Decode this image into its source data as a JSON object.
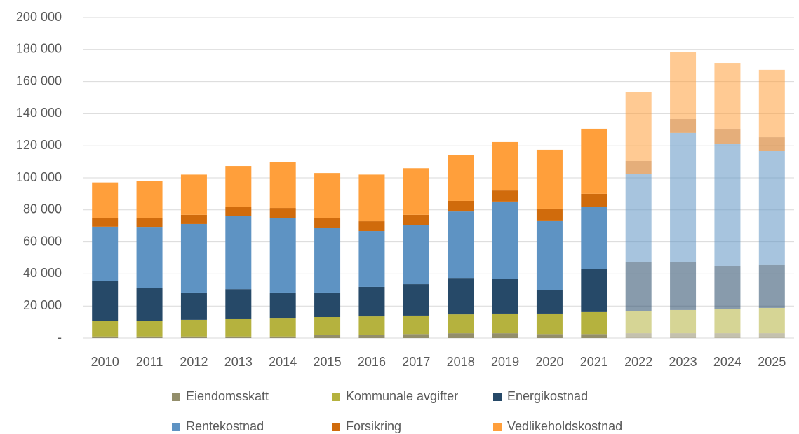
{
  "chart_data": {
    "type": "stacked_bar",
    "categories": [
      "2010",
      "2011",
      "2012",
      "2013",
      "2014",
      "2015",
      "2016",
      "2017",
      "2018",
      "2019",
      "2020",
      "2021",
      "2022",
      "2023",
      "2024",
      "2025"
    ],
    "alpha": [
      1,
      1,
      1,
      1,
      1,
      1,
      1,
      1,
      1,
      1,
      1,
      1,
      0.55,
      0.55,
      0.55,
      0.55
    ],
    "series": [
      {
        "name": "Eiendomsskatt",
        "color": "#938e6b",
        "values": [
          1000,
          1000,
          1000,
          1000,
          1000,
          2000,
          2000,
          2500,
          3000,
          3000,
          2500,
          2500,
          3000,
          3000,
          3000,
          3000
        ]
      },
      {
        "name": "Kommunale avgifter",
        "color": "#b5b23e",
        "values": [
          9500,
          9900,
          10400,
          10800,
          11200,
          11100,
          11500,
          11500,
          11800,
          12300,
          12800,
          13700,
          14000,
          14500,
          14900,
          15800
        ]
      },
      {
        "name": "Energikostnad",
        "color": "#264968",
        "values": [
          25000,
          20500,
          17000,
          18700,
          16200,
          15300,
          18400,
          19600,
          22700,
          21400,
          14400,
          26600,
          30200,
          29700,
          27100,
          27100
        ]
      },
      {
        "name": "Rentekostnad",
        "color": "#5e93c3",
        "values": [
          34000,
          38000,
          42800,
          45500,
          46700,
          40600,
          34900,
          37100,
          41500,
          48500,
          43700,
          39300,
          55400,
          80800,
          76400,
          70700
        ]
      },
      {
        "name": "Forsikring",
        "color": "#d06b0c",
        "values": [
          5300,
          5300,
          5700,
          5700,
          6100,
          5700,
          6100,
          6200,
          6600,
          6900,
          7400,
          7900,
          7900,
          8700,
          9200,
          8700
        ]
      },
      {
        "name": "Vedlikeholdskostnad",
        "color": "#ff9f3b",
        "values": [
          22300,
          23300,
          25100,
          25700,
          28800,
          28300,
          29100,
          29100,
          28800,
          30200,
          36700,
          40600,
          42800,
          41500,
          41000,
          42000
        ]
      }
    ],
    "ylim": [
      0,
      200000
    ],
    "yticks": [
      {
        "value": 0,
        "label": "-"
      },
      {
        "value": 20000,
        "label": "20 000"
      },
      {
        "value": 40000,
        "label": "40 000"
      },
      {
        "value": 60000,
        "label": "60 000"
      },
      {
        "value": 80000,
        "label": "80 000"
      },
      {
        "value": 100000,
        "label": "100 000"
      },
      {
        "value": 120000,
        "label": "120 000"
      },
      {
        "value": 140000,
        "label": "140 000"
      },
      {
        "value": 160000,
        "label": "160 000"
      },
      {
        "value": 180000,
        "label": "180 000"
      },
      {
        "value": 200000,
        "label": "200 000"
      }
    ],
    "grid": true,
    "legend": "bottom"
  }
}
